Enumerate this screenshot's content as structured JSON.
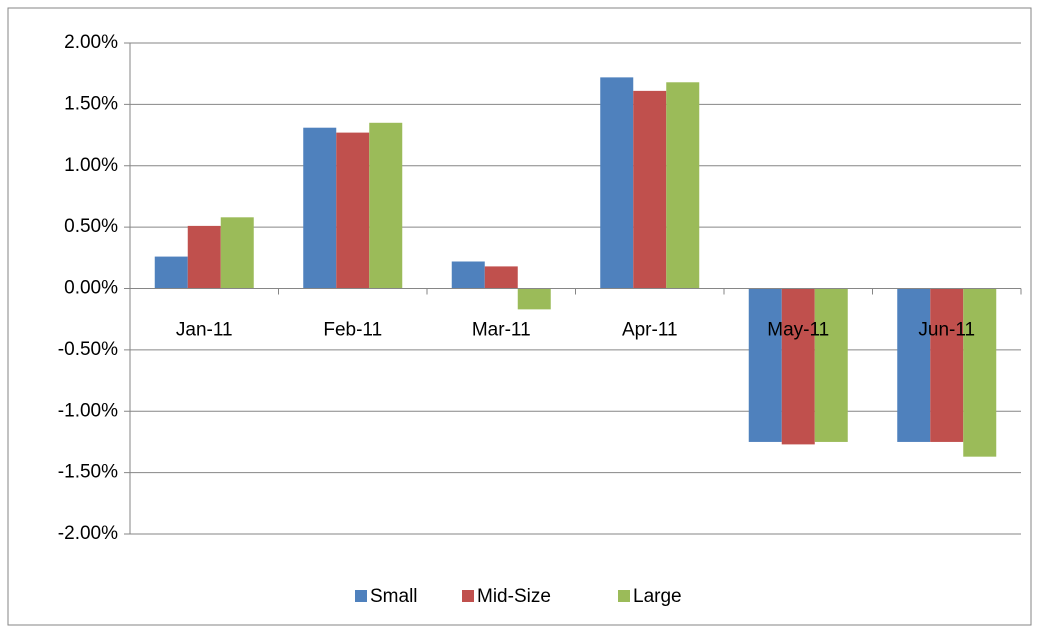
{
  "chart_data": {
    "type": "bar",
    "categories": [
      "Jan-11",
      "Feb-11",
      "Mar-11",
      "Apr-11",
      "May-11",
      "Jun-11"
    ],
    "series": [
      {
        "name": "Small",
        "color": "#4f81bd",
        "values": [
          0.26,
          1.31,
          0.22,
          1.72,
          -1.25,
          -1.25
        ]
      },
      {
        "name": "Mid-Size",
        "color": "#c0504d",
        "values": [
          0.51,
          1.27,
          0.18,
          1.61,
          -1.27,
          -1.25
        ]
      },
      {
        "name": "Large",
        "color": "#9bbb59",
        "values": [
          0.58,
          1.35,
          -0.17,
          1.68,
          -1.25,
          -1.37
        ]
      }
    ],
    "ylim": [
      -2,
      2
    ],
    "yticks": [
      {
        "value": -2,
        "label": "-2.00%"
      },
      {
        "value": -1.5,
        "label": "-1.50%"
      },
      {
        "value": -1,
        "label": "-1.00%"
      },
      {
        "value": -0.5,
        "label": "-0.50%"
      },
      {
        "value": 0,
        "label": "0.00%"
      },
      {
        "value": 0.5,
        "label": "0.50%"
      },
      {
        "value": 1,
        "label": "1.00%"
      },
      {
        "value": 1.5,
        "label": "1.50%"
      },
      {
        "value": 2,
        "label": "2.00%"
      }
    ],
    "grid": true,
    "legend": "bottom"
  }
}
